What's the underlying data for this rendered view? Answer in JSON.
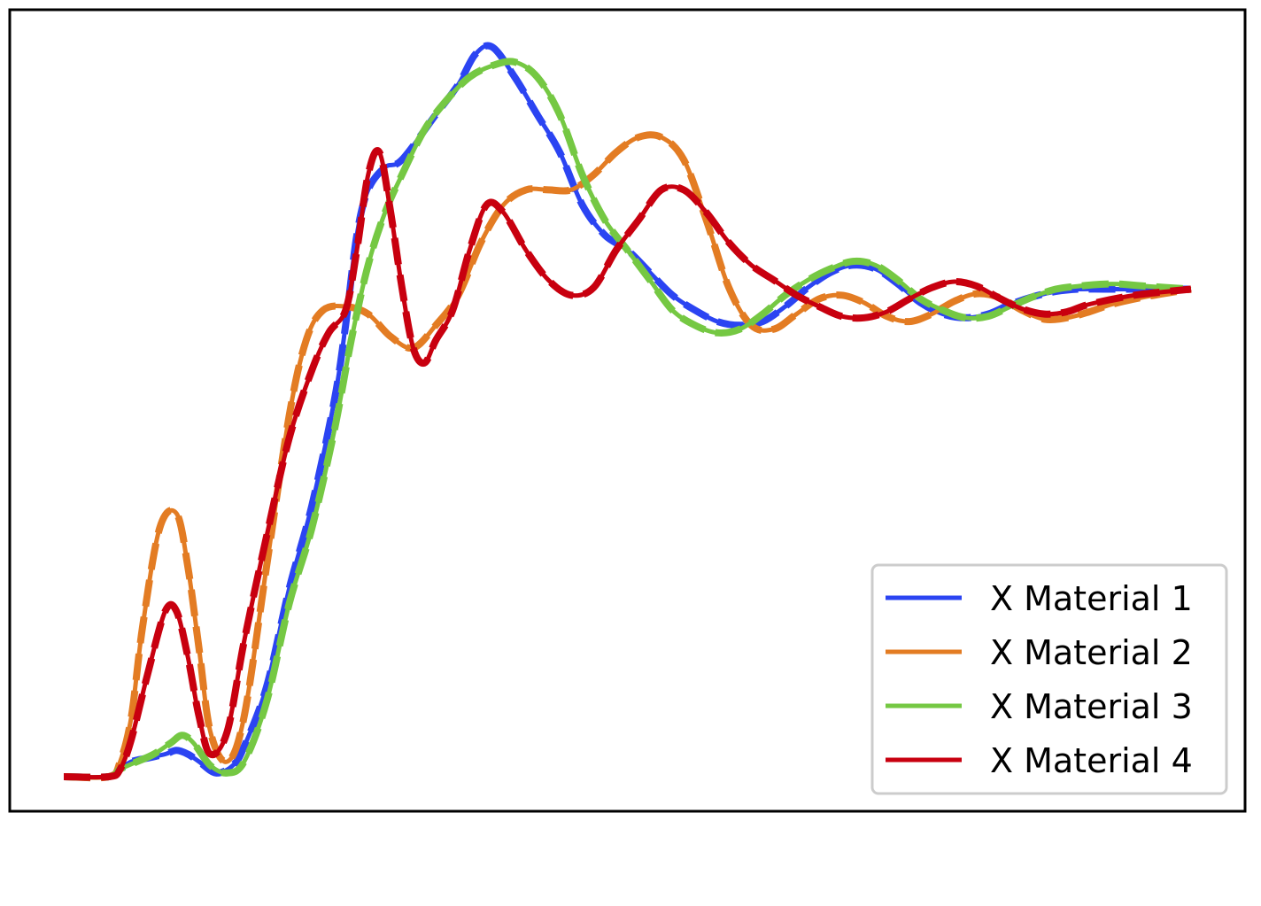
{
  "chart_data": {
    "type": "line",
    "title": "",
    "xlabel": "",
    "ylabel": "",
    "xlim": [
      0,
      1
    ],
    "ylim": [
      -0.05,
      1.0
    ],
    "grid": false,
    "axis_ticks": false,
    "legend": {
      "placement": "bottom-right",
      "entries": [
        "X Material 1",
        "X Material 2",
        "X Material 3",
        "X Material 4"
      ]
    },
    "series": [
      {
        "name": "X Material 1",
        "color": "#2b44f2",
        "style": "solid-with-dashed-overlay",
        "points": [
          [
            0.0,
            0.0
          ],
          [
            0.04,
            0.0
          ],
          [
            0.05,
            0.01
          ],
          [
            0.06,
            0.02
          ],
          [
            0.075,
            0.025
          ],
          [
            0.09,
            0.03
          ],
          [
            0.1,
            0.035
          ],
          [
            0.11,
            0.03
          ],
          [
            0.12,
            0.02
          ],
          [
            0.135,
            0.005
          ],
          [
            0.15,
            0.015
          ],
          [
            0.16,
            0.04
          ],
          [
            0.18,
            0.12
          ],
          [
            0.2,
            0.25
          ],
          [
            0.22,
            0.36
          ],
          [
            0.24,
            0.5
          ],
          [
            0.25,
            0.6
          ],
          [
            0.26,
            0.72
          ],
          [
            0.27,
            0.78
          ],
          [
            0.285,
            0.81
          ],
          [
            0.3,
            0.82
          ],
          [
            0.33,
            0.88
          ],
          [
            0.35,
            0.92
          ],
          [
            0.365,
            0.96
          ],
          [
            0.38,
            0.97
          ],
          [
            0.4,
            0.93
          ],
          [
            0.42,
            0.88
          ],
          [
            0.44,
            0.83
          ],
          [
            0.46,
            0.76
          ],
          [
            0.48,
            0.72
          ],
          [
            0.5,
            0.7
          ],
          [
            0.52,
            0.67
          ],
          [
            0.54,
            0.64
          ],
          [
            0.56,
            0.62
          ],
          [
            0.58,
            0.605
          ],
          [
            0.6,
            0.6
          ],
          [
            0.62,
            0.605
          ],
          [
            0.64,
            0.625
          ],
          [
            0.66,
            0.65
          ],
          [
            0.68,
            0.67
          ],
          [
            0.7,
            0.68
          ],
          [
            0.72,
            0.675
          ],
          [
            0.74,
            0.655
          ],
          [
            0.76,
            0.63
          ],
          [
            0.78,
            0.615
          ],
          [
            0.8,
            0.61
          ],
          [
            0.82,
            0.615
          ],
          [
            0.84,
            0.628
          ],
          [
            0.86,
            0.638
          ],
          [
            0.88,
            0.645
          ],
          [
            0.9,
            0.648
          ],
          [
            0.93,
            0.648
          ],
          [
            1.0,
            0.648
          ]
        ]
      },
      {
        "name": "X Material 2",
        "color": "#e37c23",
        "style": "solid-with-dashed-overlay",
        "points": [
          [
            0.0,
            0.0
          ],
          [
            0.04,
            0.0
          ],
          [
            0.05,
            0.02
          ],
          [
            0.06,
            0.08
          ],
          [
            0.07,
            0.2
          ],
          [
            0.085,
            0.33
          ],
          [
            0.1,
            0.35
          ],
          [
            0.11,
            0.28
          ],
          [
            0.12,
            0.17
          ],
          [
            0.13,
            0.06
          ],
          [
            0.145,
            0.02
          ],
          [
            0.16,
            0.08
          ],
          [
            0.18,
            0.28
          ],
          [
            0.2,
            0.48
          ],
          [
            0.215,
            0.58
          ],
          [
            0.23,
            0.62
          ],
          [
            0.25,
            0.625
          ],
          [
            0.27,
            0.615
          ],
          [
            0.29,
            0.585
          ],
          [
            0.31,
            0.57
          ],
          [
            0.33,
            0.6
          ],
          [
            0.35,
            0.64
          ],
          [
            0.37,
            0.71
          ],
          [
            0.39,
            0.76
          ],
          [
            0.41,
            0.78
          ],
          [
            0.43,
            0.78
          ],
          [
            0.45,
            0.78
          ],
          [
            0.47,
            0.8
          ],
          [
            0.49,
            0.83
          ],
          [
            0.51,
            0.85
          ],
          [
            0.53,
            0.85
          ],
          [
            0.55,
            0.82
          ],
          [
            0.57,
            0.74
          ],
          [
            0.59,
            0.65
          ],
          [
            0.61,
            0.6
          ],
          [
            0.63,
            0.595
          ],
          [
            0.65,
            0.615
          ],
          [
            0.67,
            0.635
          ],
          [
            0.69,
            0.64
          ],
          [
            0.71,
            0.63
          ],
          [
            0.73,
            0.612
          ],
          [
            0.75,
            0.605
          ],
          [
            0.77,
            0.615
          ],
          [
            0.79,
            0.632
          ],
          [
            0.81,
            0.642
          ],
          [
            0.83,
            0.637
          ],
          [
            0.85,
            0.62
          ],
          [
            0.87,
            0.608
          ],
          [
            0.89,
            0.61
          ],
          [
            0.91,
            0.618
          ],
          [
            0.93,
            0.628
          ],
          [
            0.96,
            0.638
          ],
          [
            1.0,
            0.648
          ]
        ]
      },
      {
        "name": "X Material 3",
        "color": "#75c843",
        "style": "solid-with-dashed-overlay",
        "points": [
          [
            0.0,
            0.0
          ],
          [
            0.04,
            0.0
          ],
          [
            0.05,
            0.01
          ],
          [
            0.065,
            0.02
          ],
          [
            0.08,
            0.03
          ],
          [
            0.095,
            0.045
          ],
          [
            0.105,
            0.055
          ],
          [
            0.115,
            0.045
          ],
          [
            0.13,
            0.015
          ],
          [
            0.145,
            0.005
          ],
          [
            0.16,
            0.02
          ],
          [
            0.18,
            0.1
          ],
          [
            0.2,
            0.23
          ],
          [
            0.22,
            0.33
          ],
          [
            0.24,
            0.46
          ],
          [
            0.255,
            0.58
          ],
          [
            0.27,
            0.68
          ],
          [
            0.285,
            0.75
          ],
          [
            0.3,
            0.8
          ],
          [
            0.32,
            0.86
          ],
          [
            0.34,
            0.9
          ],
          [
            0.36,
            0.93
          ],
          [
            0.38,
            0.945
          ],
          [
            0.4,
            0.95
          ],
          [
            0.42,
            0.93
          ],
          [
            0.44,
            0.88
          ],
          [
            0.46,
            0.8
          ],
          [
            0.48,
            0.74
          ],
          [
            0.5,
            0.7
          ],
          [
            0.52,
            0.66
          ],
          [
            0.54,
            0.62
          ],
          [
            0.56,
            0.6
          ],
          [
            0.58,
            0.59
          ],
          [
            0.6,
            0.595
          ],
          [
            0.62,
            0.615
          ],
          [
            0.64,
            0.64
          ],
          [
            0.66,
            0.66
          ],
          [
            0.68,
            0.675
          ],
          [
            0.7,
            0.685
          ],
          [
            0.72,
            0.68
          ],
          [
            0.74,
            0.66
          ],
          [
            0.76,
            0.635
          ],
          [
            0.78,
            0.62
          ],
          [
            0.8,
            0.61
          ],
          [
            0.82,
            0.612
          ],
          [
            0.84,
            0.625
          ],
          [
            0.86,
            0.638
          ],
          [
            0.88,
            0.648
          ],
          [
            0.9,
            0.652
          ],
          [
            0.93,
            0.655
          ],
          [
            0.96,
            0.652
          ],
          [
            1.0,
            0.648
          ]
        ]
      },
      {
        "name": "X Material 4",
        "color": "#c8000f",
        "style": "solid-with-dashed-overlay",
        "points": [
          [
            0.0,
            0.0
          ],
          [
            0.04,
            0.0
          ],
          [
            0.05,
            0.01
          ],
          [
            0.06,
            0.05
          ],
          [
            0.075,
            0.14
          ],
          [
            0.09,
            0.22
          ],
          [
            0.1,
            0.22
          ],
          [
            0.11,
            0.16
          ],
          [
            0.12,
            0.08
          ],
          [
            0.13,
            0.03
          ],
          [
            0.145,
            0.06
          ],
          [
            0.16,
            0.18
          ],
          [
            0.18,
            0.32
          ],
          [
            0.2,
            0.45
          ],
          [
            0.22,
            0.54
          ],
          [
            0.235,
            0.59
          ],
          [
            0.25,
            0.62
          ],
          [
            0.26,
            0.7
          ],
          [
            0.27,
            0.8
          ],
          [
            0.28,
            0.83
          ],
          [
            0.29,
            0.75
          ],
          [
            0.3,
            0.65
          ],
          [
            0.31,
            0.57
          ],
          [
            0.32,
            0.55
          ],
          [
            0.33,
            0.58
          ],
          [
            0.345,
            0.62
          ],
          [
            0.36,
            0.7
          ],
          [
            0.375,
            0.76
          ],
          [
            0.39,
            0.75
          ],
          [
            0.41,
            0.7
          ],
          [
            0.43,
            0.66
          ],
          [
            0.45,
            0.64
          ],
          [
            0.47,
            0.65
          ],
          [
            0.49,
            0.7
          ],
          [
            0.51,
            0.74
          ],
          [
            0.53,
            0.78
          ],
          [
            0.55,
            0.78
          ],
          [
            0.57,
            0.75
          ],
          [
            0.59,
            0.71
          ],
          [
            0.61,
            0.68
          ],
          [
            0.63,
            0.66
          ],
          [
            0.65,
            0.64
          ],
          [
            0.67,
            0.625
          ],
          [
            0.69,
            0.612
          ],
          [
            0.71,
            0.61
          ],
          [
            0.73,
            0.618
          ],
          [
            0.75,
            0.635
          ],
          [
            0.77,
            0.65
          ],
          [
            0.79,
            0.658
          ],
          [
            0.81,
            0.652
          ],
          [
            0.83,
            0.636
          ],
          [
            0.85,
            0.622
          ],
          [
            0.87,
            0.615
          ],
          [
            0.89,
            0.618
          ],
          [
            0.91,
            0.628
          ],
          [
            0.95,
            0.64
          ],
          [
            1.0,
            0.648
          ]
        ]
      }
    ]
  }
}
